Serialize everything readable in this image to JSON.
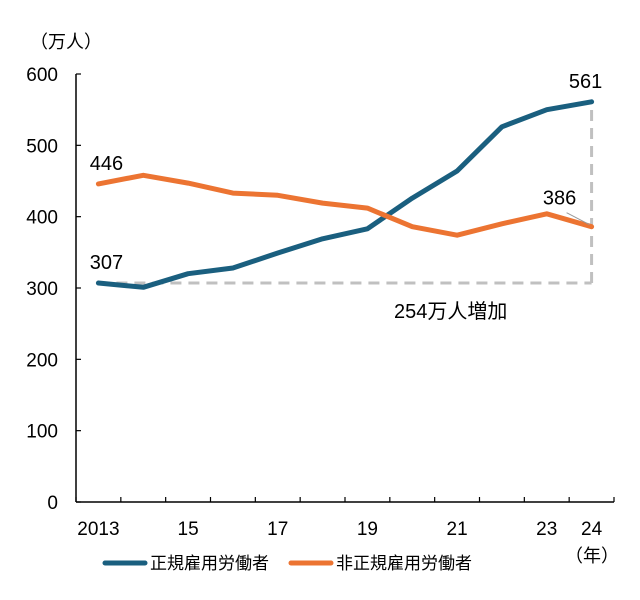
{
  "chart_data": {
    "type": "line",
    "title": "",
    "ylabel": "（万人）",
    "xlabel": "（年）",
    "ylim": [
      0,
      600
    ],
    "yticks": [
      0,
      100,
      200,
      300,
      400,
      500,
      600
    ],
    "categories": [
      "2013",
      "2014",
      "2015",
      "2016",
      "2017",
      "2018",
      "2019",
      "2020",
      "2021",
      "2022",
      "2023",
      "2024"
    ],
    "xtick_labels": [
      {
        "category": "2013",
        "label": "2013"
      },
      {
        "category": "2015",
        "label": "15"
      },
      {
        "category": "2017",
        "label": "17"
      },
      {
        "category": "2019",
        "label": "19"
      },
      {
        "category": "2021",
        "label": "21"
      },
      {
        "category": "2023",
        "label": "23"
      },
      {
        "category": "2024",
        "label": "24"
      }
    ],
    "grid": false,
    "legend_position": "bottom",
    "series": [
      {
        "name": "正規雇用労働者",
        "color": "#1a5f7f",
        "values": [
          307,
          301,
          320,
          328,
          349,
          369,
          383,
          426,
          464,
          526,
          550,
          561
        ]
      },
      {
        "name": "非正規雇用労働者",
        "color": "#ec7432",
        "values": [
          446,
          458,
          447,
          433,
          430,
          419,
          412,
          386,
          374,
          390,
          404,
          386
        ]
      }
    ],
    "data_labels": [
      {
        "series": 0,
        "category": "2013",
        "text": "307"
      },
      {
        "series": 1,
        "category": "2013",
        "text": "446"
      },
      {
        "series": 0,
        "category": "2024",
        "text": "561"
      },
      {
        "series": 1,
        "category": "2024",
        "text": "386"
      }
    ],
    "annotation": {
      "text": "254万人増加",
      "from_value": 307,
      "to_value": 561,
      "line_color": "#c0c0c0"
    }
  }
}
